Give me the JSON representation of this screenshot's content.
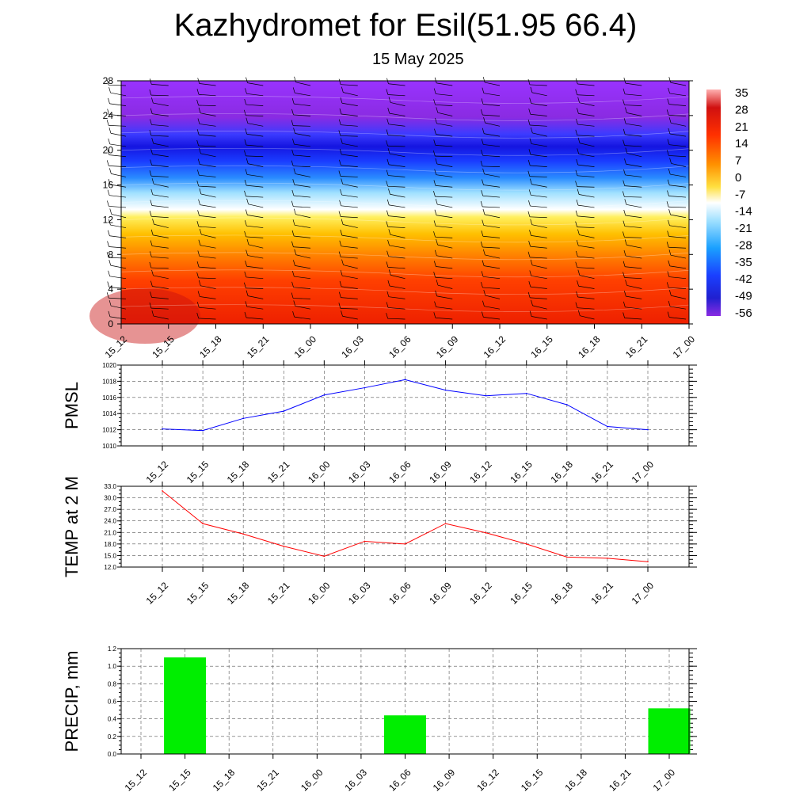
{
  "header": {
    "title": "Kazhydromet for Esil(51.95 66.4)",
    "subtitle": "15 May 2025"
  },
  "colors": {
    "pmsl_line": "#0000ff",
    "temp_line": "#ff0000",
    "precip_bar": "#00ee00"
  },
  "chart_data": [
    {
      "type": "heatmap",
      "title": "",
      "x_ticks": [
        "15_12",
        "15_15",
        "15_18",
        "15_21",
        "16_00",
        "16_03",
        "16_06",
        "16_09",
        "16_12",
        "16_15",
        "16_18",
        "16_21",
        "17_00"
      ],
      "y_ticks": [
        "0",
        "4",
        "8",
        "12",
        "16",
        "20",
        "24",
        "28"
      ],
      "ylim": [
        0,
        28
      ],
      "colorbar_labels": [
        "35",
        "28",
        "21",
        "14",
        "7",
        "0",
        "-7",
        "-14",
        "-21",
        "-28",
        "-35",
        "-42",
        "-49",
        "-56"
      ],
      "overlay": "wind barbs"
    },
    {
      "type": "line",
      "ylabel": "PMSL",
      "x": [
        "15_12",
        "15_15",
        "15_18",
        "15_21",
        "16_00",
        "16_03",
        "16_06",
        "16_09",
        "16_12",
        "16_15",
        "16_18",
        "16_21",
        "17_00"
      ],
      "values": [
        1012.1,
        1011.9,
        1013.4,
        1014.3,
        1016.3,
        1017.2,
        1018.2,
        1016.9,
        1016.2,
        1016.5,
        1015.1,
        1012.4,
        1012.0
      ],
      "ylim": [
        1010,
        1020
      ],
      "y_ticks": [
        "1010",
        "1012",
        "1014",
        "1016",
        "1018",
        "1020"
      ],
      "grid": true
    },
    {
      "type": "line",
      "ylabel": "TEMP at 2 M",
      "x": [
        "15_12",
        "15_15",
        "15_18",
        "15_21",
        "16_00",
        "16_03",
        "16_06",
        "16_09",
        "16_12",
        "16_15",
        "16_18",
        "16_21",
        "17_00"
      ],
      "values": [
        31.8,
        23.3,
        20.6,
        17.4,
        14.8,
        18.7,
        18.0,
        23.3,
        20.9,
        18.0,
        14.6,
        14.3,
        13.4
      ],
      "ylim": [
        12,
        33
      ],
      "y_ticks": [
        "12.0",
        "15.0",
        "18.0",
        "21.0",
        "24.0",
        "27.0",
        "30.0",
        "33.0"
      ],
      "grid": true
    },
    {
      "type": "bar",
      "ylabel": "PRECIP, mm",
      "categories": [
        "15_12",
        "15_15",
        "15_18",
        "15_21",
        "16_00",
        "16_03",
        "16_06",
        "16_09",
        "16_12",
        "16_15",
        "16_18",
        "16_21",
        "17_00"
      ],
      "values": [
        0,
        1.1,
        0,
        0,
        0,
        0,
        0.44,
        0,
        0,
        0,
        0,
        0,
        0.52
      ],
      "ylim": [
        0,
        1.2
      ],
      "y_ticks": [
        "0.0",
        "0.2",
        "0.4",
        "0.6",
        "0.8",
        "1.0",
        "1.2"
      ],
      "grid": true
    }
  ]
}
